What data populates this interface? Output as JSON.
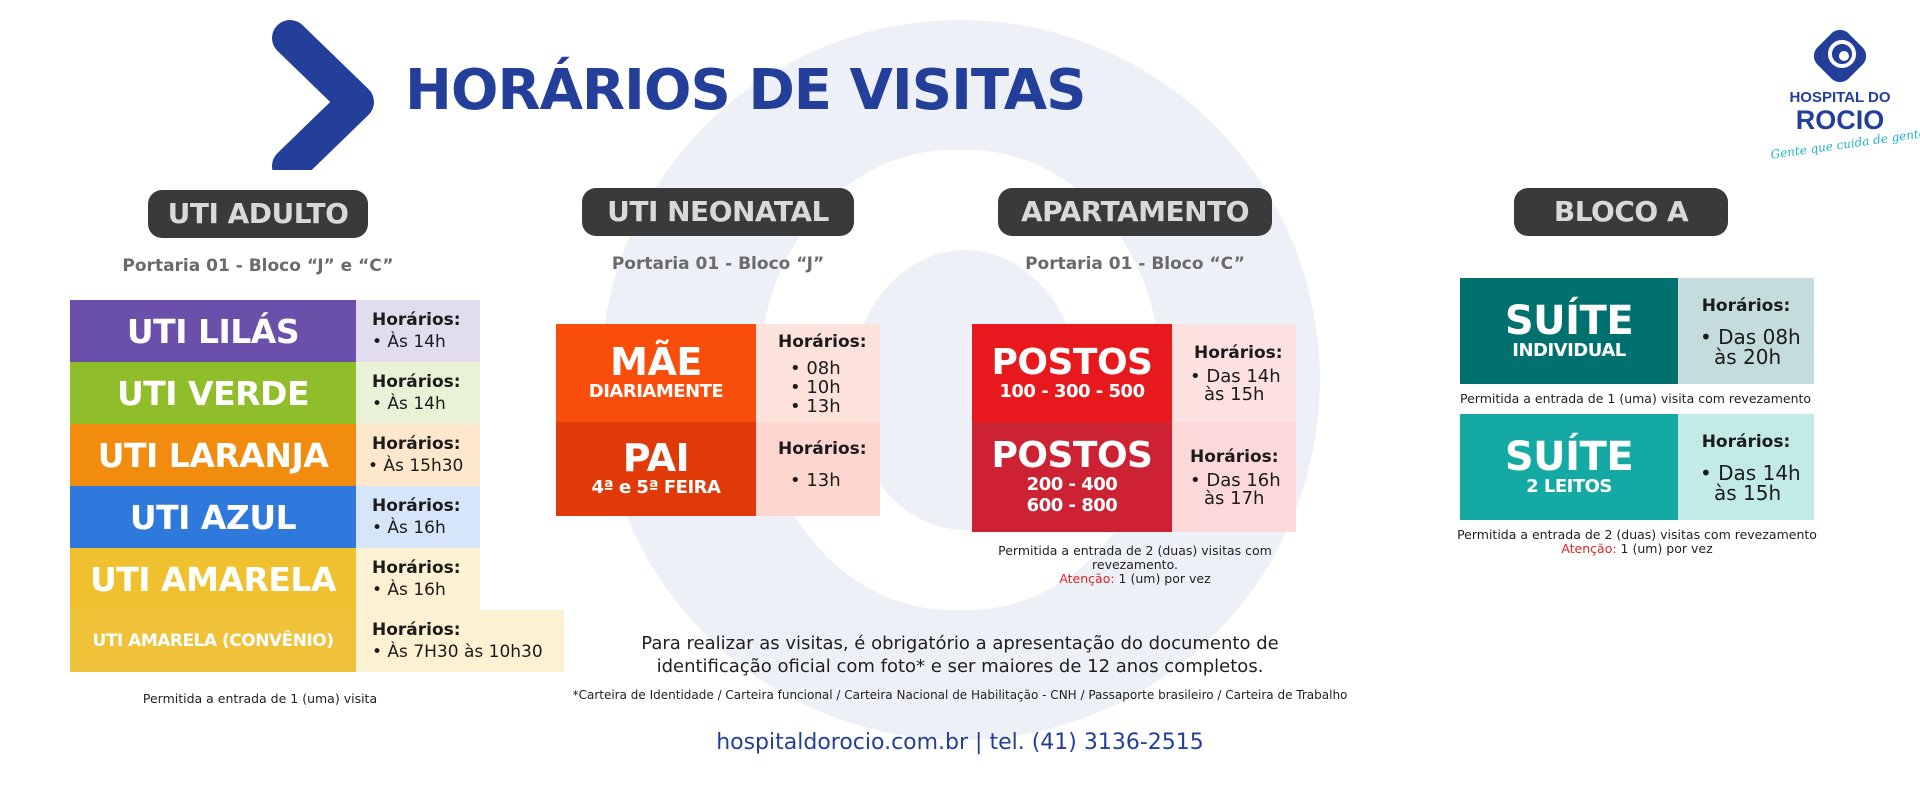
{
  "header": {
    "title": "HORÁRIOS DE VISITAS",
    "logo_line1": "HOSPITAL DO",
    "logo_line2": "ROCIO",
    "logo_tagline": "Gente que cuida de gente!"
  },
  "colors": {
    "brand_blue": "#233f99",
    "pill_bg": "#3a3a3a",
    "uti_lilas": "#6a4fab",
    "uti_verde": "#8fbe2a",
    "uti_laranja": "#f28c0f",
    "uti_azul": "#2f79dd",
    "uti_amarela": "#f0c12e",
    "uti_amarela_convenio": "#efc23a",
    "mae": "#f94e0b",
    "pai": "#e03a08",
    "postos_1": "#e8191d",
    "postos_2": "#cc2233",
    "suite_individual": "#00716f",
    "suite_2_leitos": "#14aaa3",
    "attention": "#e02424"
  },
  "uti_adulto": {
    "title": "UTI ADULTO",
    "portaria": "Portaria 01 - Bloco “J” e “C”",
    "rows": [
      {
        "name": "UTI LILÁS",
        "label": "Horários:",
        "time": "• Às 14h"
      },
      {
        "name": "UTI VERDE",
        "label": "Horários:",
        "time": "• Às 14h"
      },
      {
        "name": "UTI LARANJA",
        "label": "Horários:",
        "time": "• Às 15h30"
      },
      {
        "name": "UTI AZUL",
        "label": "Horários:",
        "time": "• Às 16h"
      },
      {
        "name": "UTI AMARELA",
        "label": "Horários:",
        "time": "• Às 16h"
      },
      {
        "name": "UTI AMARELA (CONVÊNIO)",
        "label": "Horários:",
        "time": "• Às 7H30 às 10h30"
      }
    ],
    "note": "Permitida a entrada de 1 (uma) visita"
  },
  "uti_neonatal": {
    "title": "UTI NEONATAL",
    "portaria": "Portaria 01 - Bloco “J”",
    "rows": [
      {
        "name": "MÃE",
        "sub": "DIARIAMENTE",
        "label": "Horários:",
        "times": [
          "• 08h",
          "• 10h",
          "• 13h"
        ]
      },
      {
        "name": "PAI",
        "sub": "4ª e 5ª FEIRA",
        "label": "Horários:",
        "times": [
          "• 13h"
        ]
      }
    ]
  },
  "apartamento": {
    "title": "APARTAMENTO",
    "portaria": "Portaria 01 - Bloco “C”",
    "rows": [
      {
        "name": "POSTOS",
        "sub1": "100 - 300 - 500",
        "sub2": "",
        "label": "Horários:",
        "time1": "• Das 14h",
        "time2": "às 15h"
      },
      {
        "name": "POSTOS",
        "sub1": "200 - 400",
        "sub2": "600 - 800",
        "label": "Horários:",
        "time1": "• Das 16h",
        "time2": "às 17h"
      }
    ],
    "note1": "Permitida a entrada de 2 (duas) visitas com",
    "note2": "revezamento.",
    "attention_label": "Atenção:",
    "attention_text": " 1 (um) por vez"
  },
  "bloco_a": {
    "title": "BLOCO A",
    "rows": [
      {
        "name": "SUÍTE",
        "sub": "INDIVIDUAL",
        "label": "Horários:",
        "time1": "• Das 08h",
        "time2": "às 20h",
        "note": "Permitida a entrada de 1 (uma) visita com revezamento"
      },
      {
        "name": "SUÍTE",
        "sub": "2 LEITOS",
        "label": "Horários:",
        "time1": "• Das 14h",
        "time2": "às 15h",
        "note": "Permitida a entrada de 2 (duas) visitas com revezamento"
      }
    ],
    "attention_label": "Atenção:",
    "attention_text": " 1 (um) por vez"
  },
  "footer": {
    "line1": "Para realizar as visitas, é obrigatório a apresentação do documento de",
    "line2": "identificação oficial com foto* e ser maiores de 12 anos completos.",
    "footnote": "*Carteira de Identidade / Carteira funcional / Carteira Nacional de Habilitação - CNH / Passaporte brasileiro / Carteira de Trabalho",
    "contact": "hospitaldorocio.com.br | tel. (41) 3136-2515"
  }
}
